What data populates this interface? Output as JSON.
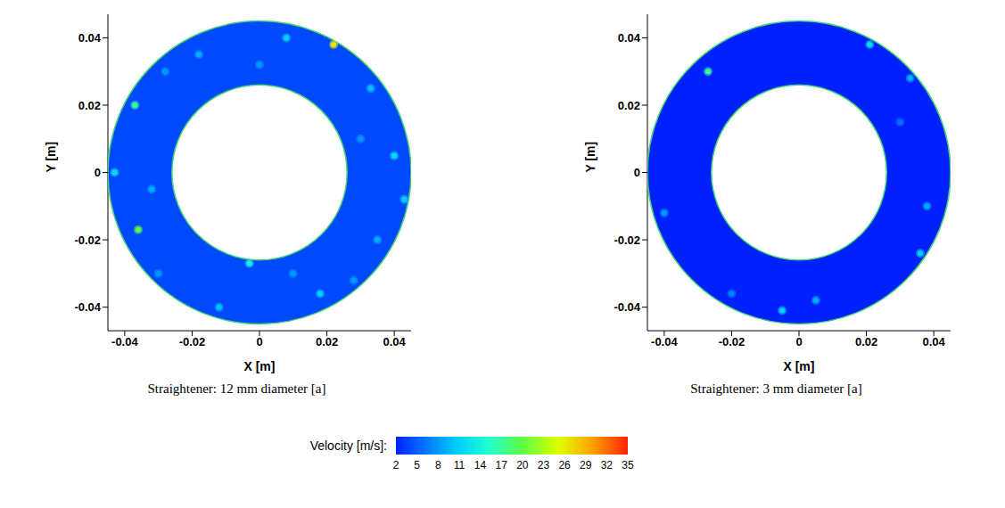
{
  "chart_data": [
    {
      "type": "heatmap",
      "title": "Straightener: 12 mm diameter [a]",
      "xlabel": "X [m]",
      "ylabel": "Y [m]",
      "xlim": [
        -0.045,
        0.045
      ],
      "ylim": [
        -0.047,
        0.047
      ],
      "xticks": [
        -0.04,
        -0.02,
        0,
        0.02,
        0.04
      ],
      "yticks": [
        -0.04,
        -0.02,
        0,
        0.02,
        0.04
      ],
      "annulus": {
        "center": [
          0,
          0
        ],
        "inner_radius": 0.026,
        "outer_radius": 0.045,
        "velocity": 4
      },
      "points": {
        "x": [
          -0.037,
          0.022,
          -0.036,
          -0.003,
          0.008,
          -0.018,
          0.033,
          0.04,
          0.035,
          0.018,
          -0.012,
          -0.043,
          -0.03,
          0.028,
          -0.028,
          0,
          0.03,
          -0.032,
          0.01,
          0.043
        ],
        "y": [
          0.02,
          0.038,
          -0.017,
          -0.027,
          0.04,
          0.035,
          0.025,
          0.005,
          -0.02,
          -0.036,
          -0.04,
          0,
          -0.03,
          -0.032,
          0.03,
          0.032,
          0.01,
          -0.005,
          -0.03,
          -0.008
        ],
        "velocity": [
          17,
          26,
          20,
          14,
          11,
          9,
          10,
          12,
          9,
          11,
          10,
          12,
          8,
          8,
          8,
          8,
          8,
          9,
          8,
          11
        ]
      }
    },
    {
      "type": "heatmap",
      "title": "Straightener: 3 mm diameter [a]",
      "xlabel": "X [m]",
      "ylabel": "Y [m]",
      "xlim": [
        -0.045,
        0.045
      ],
      "ylim": [
        -0.047,
        0.047
      ],
      "xticks": [
        -0.04,
        -0.02,
        0,
        0.02,
        0.04
      ],
      "yticks": [
        -0.04,
        -0.02,
        0,
        0.02,
        0.04
      ],
      "annulus": {
        "center": [
          0,
          0
        ],
        "inner_radius": 0.026,
        "outer_radius": 0.045,
        "velocity": 2
      },
      "points": {
        "x": [
          -0.027,
          0.021,
          0.033,
          0.038,
          0.036,
          -0.04,
          -0.005,
          0.005,
          -0.02,
          0.03
        ],
        "y": [
          0.03,
          0.038,
          0.028,
          -0.01,
          -0.024,
          -0.012,
          -0.041,
          -0.038,
          -0.036,
          0.015
        ],
        "velocity": [
          17,
          12,
          9,
          9,
          11,
          8,
          11,
          9,
          7,
          6
        ]
      }
    }
  ],
  "colorbar": {
    "label": "Velocity [m/s]:",
    "range": [
      2,
      35
    ],
    "ticks": [
      2,
      5,
      8,
      11,
      14,
      17,
      20,
      23,
      26,
      29,
      32,
      35
    ]
  }
}
